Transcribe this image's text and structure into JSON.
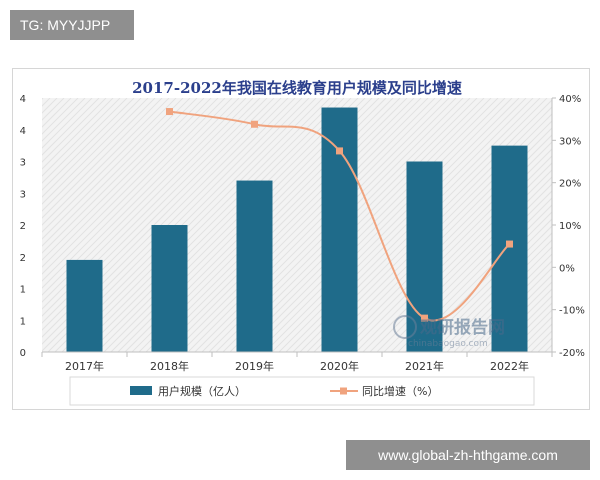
{
  "badges": {
    "tg": "TG: MYYJJPP",
    "url": "www.global-zh-hthgame.com"
  },
  "watermark": {
    "brand": "观研报告网",
    "url": "chinabaogao.com"
  },
  "chart_data": {
    "type": "bar",
    "title": "2017-2022年我国在线教育用户规模及同比增速",
    "categories": [
      "2017年",
      "2018年",
      "2019年",
      "2020年",
      "2021年",
      "2022年"
    ],
    "series": [
      {
        "name": "用户规模（亿人）",
        "type": "bar",
        "axis": "left",
        "color": "#1f6b8a",
        "values": [
          1.45,
          2.0,
          2.7,
          3.85,
          3.0,
          3.25
        ]
      },
      {
        "name": "同比增速（%）",
        "type": "line",
        "axis": "right",
        "color": "#f0a37e",
        "values": [
          null,
          36.8,
          33.8,
          27.5,
          -12.0,
          5.5
        ]
      }
    ],
    "y_left": {
      "ticks": [
        "0",
        "1",
        "1",
        "2",
        "2",
        "3",
        "3",
        "4",
        "4"
      ],
      "ylim": [
        0,
        4
      ]
    },
    "y_right": {
      "ticks": [
        "-20%",
        "-10%",
        "0%",
        "10%",
        "20%",
        "30%",
        "40%"
      ],
      "ylim": [
        -20,
        40
      ]
    },
    "legend_position": "bottom"
  }
}
